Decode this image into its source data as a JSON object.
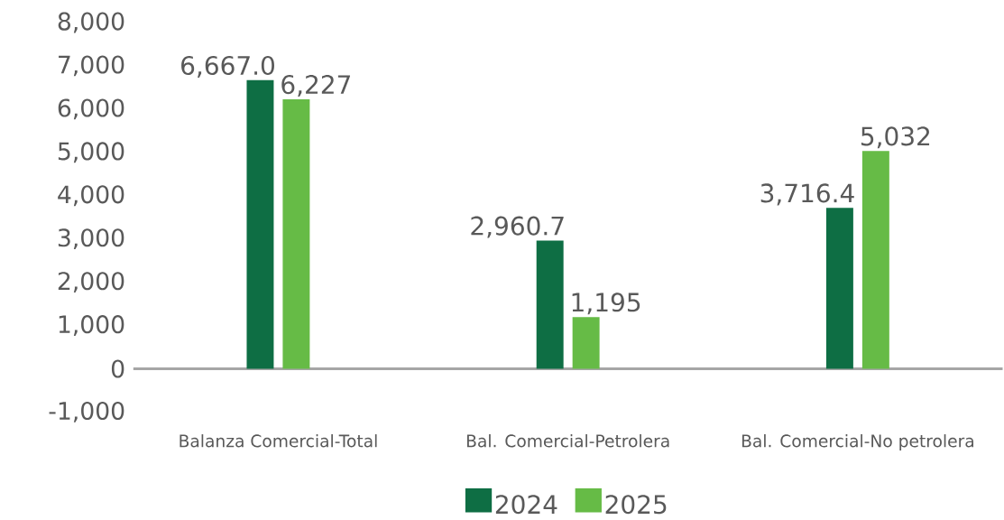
{
  "chart_data": {
    "type": "bar",
    "categories": [
      "Balanza Comercial-Total",
      "Bal. Comercial-Petrolera",
      "Bal. Comercial-No petrolera"
    ],
    "series": [
      {
        "name": "2024",
        "color": "#0e6e44",
        "values": [
          6667.0,
          2960.7,
          3716.4
        ],
        "value_labels": [
          "6,667.0",
          "2,960.7",
          "3,716.4"
        ]
      },
      {
        "name": "2025",
        "color": "#66bb46",
        "values": [
          6227,
          1195,
          5032
        ],
        "value_labels": [
          "6,227",
          "1,195",
          "5,032"
        ]
      }
    ],
    "ylim": [
      -1000,
      8000
    ],
    "yticks": [
      {
        "value": -1000,
        "label": "-1,000"
      },
      0,
      {
        "value": 1000,
        "label": "1,000"
      },
      {
        "value": 2000,
        "label": "2,000"
      },
      {
        "value": 3000,
        "label": "3,000"
      },
      {
        "value": 4000,
        "label": "4,000"
      },
      {
        "value": 5000,
        "label": "5,000"
      },
      {
        "value": 6000,
        "label": "6,000"
      },
      {
        "value": 7000,
        "label": "7,000"
      },
      {
        "value": 8000,
        "label": "8,000"
      }
    ],
    "legend": "bottom"
  }
}
